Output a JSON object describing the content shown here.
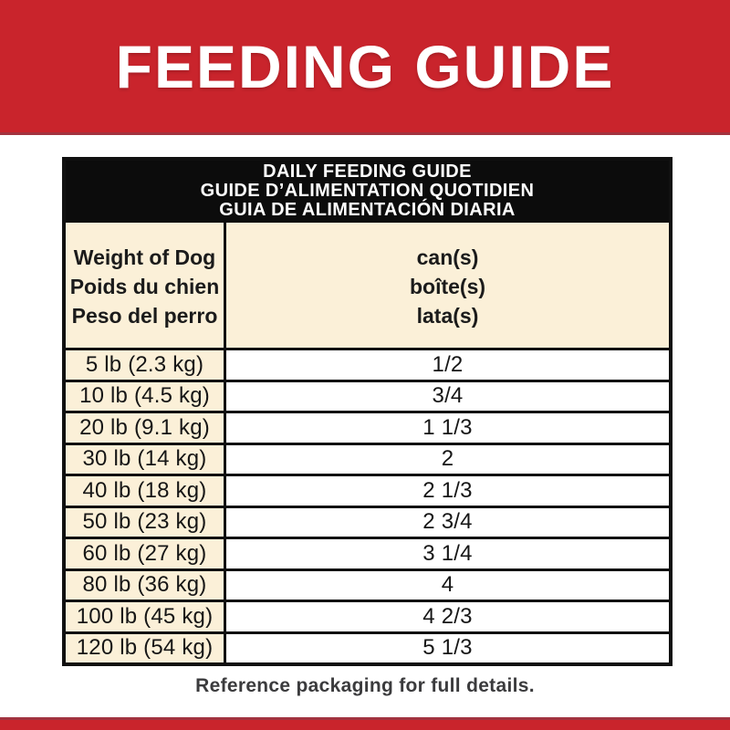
{
  "banner": {
    "title": "FEEDING GUIDE",
    "bg_color": "#c9242c",
    "edge_color": "#a2333f"
  },
  "table": {
    "title_lines": [
      "DAILY FEEDING GUIDE",
      "GUIDE D’ALIMENTATION QUOTIDIEN",
      "GUIA DE ALIMENTACIÓN DIARIA"
    ],
    "header": {
      "weight_col_lines": [
        "Weight of Dog",
        "Poids du chien",
        "Peso del perro"
      ],
      "amount_col_lines": [
        "can(s)",
        "boîte(s)",
        "lata(s)"
      ]
    },
    "rows": [
      {
        "weight": "5 lb (2.3 kg)",
        "amount": "1/2"
      },
      {
        "weight": "10 lb (4.5 kg)",
        "amount": "3/4"
      },
      {
        "weight": "20 lb (9.1 kg)",
        "amount": "1 1/3"
      },
      {
        "weight": "30 lb (14 kg)",
        "amount": "2"
      },
      {
        "weight": "40 lb (18 kg)",
        "amount": "2 1/3"
      },
      {
        "weight": "50 lb (23 kg)",
        "amount": "2 3/4"
      },
      {
        "weight": "60 lb (27 kg)",
        "amount": "3 1/4"
      },
      {
        "weight": "80 lb (36 kg)",
        "amount": "4"
      },
      {
        "weight": "100 lb (45 kg)",
        "amount": "4 2/3"
      },
      {
        "weight": "120 lb (54 kg)",
        "amount": "5 1/3"
      }
    ],
    "colors": {
      "header_band": "#0c0c0c",
      "cream_cell": "#fbf0d8",
      "white_cell": "#ffffff",
      "border": "#111111"
    }
  },
  "footer": {
    "note": "Reference packaging for full details.",
    "strip_color": "#c9242c"
  }
}
